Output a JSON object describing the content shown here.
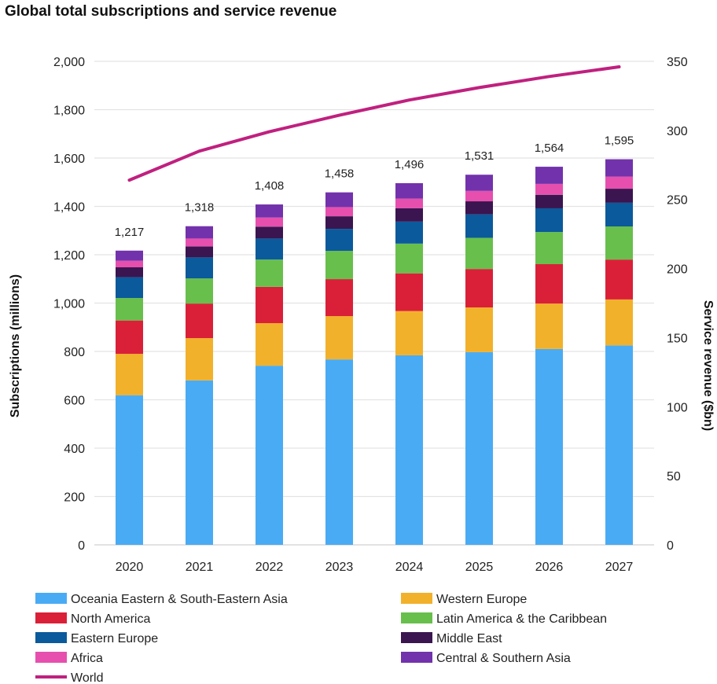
{
  "chart_data": {
    "type": "bar",
    "stacked": true,
    "title": "Global total subscriptions and service revenue",
    "categories": [
      "2020",
      "2021",
      "2022",
      "2023",
      "2024",
      "2025",
      "2026",
      "2027"
    ],
    "ylabel": "Subscriptions (millions)",
    "y2label": "Service revenue ($bn)",
    "ylim": [
      0,
      2000
    ],
    "y2lim": [
      0,
      350
    ],
    "yticks": [
      0,
      200,
      400,
      600,
      800,
      1000,
      1200,
      1400,
      1600,
      1800,
      2000
    ],
    "ytick_labels": [
      "0",
      "200",
      "400",
      "600",
      "800",
      "1,000",
      "1,200",
      "1,400",
      "1,600",
      "1,800",
      "2,000"
    ],
    "y2ticks": [
      0,
      50,
      100,
      150,
      200,
      250,
      300,
      350
    ],
    "y2tick_labels": [
      "0",
      "50",
      "100",
      "150",
      "200",
      "250",
      "300",
      "350"
    ],
    "grid": true,
    "legend_position": "bottom",
    "totals": [
      "1,217",
      "1,318",
      "1,408",
      "1,458",
      "1,496",
      "1,531",
      "1,564",
      "1,595"
    ],
    "series": [
      {
        "name": "Oceania Eastern & South-Eastern Asia",
        "color": "#4AABF5",
        "values": [
          619,
          680,
          741,
          767,
          784,
          797,
          810,
          825
        ]
      },
      {
        "name": "Western Europe",
        "color": "#F2B12A",
        "values": [
          171,
          175,
          176,
          179,
          183,
          185,
          188,
          190
        ]
      },
      {
        "name": "North America",
        "color": "#DA2038",
        "values": [
          138,
          143,
          150,
          153,
          156,
          159,
          163,
          165
        ]
      },
      {
        "name": "Latin America & the Caribbean",
        "color": "#68BF4C",
        "values": [
          93,
          104,
          113,
          117,
          123,
          129,
          133,
          137
        ]
      },
      {
        "name": "Eastern Europe",
        "color": "#0B5A9C",
        "values": [
          86,
          87,
          87,
          91,
          91,
          97,
          98,
          98
        ]
      },
      {
        "name": "Middle East",
        "color": "#3A1550",
        "values": [
          41,
          45,
          49,
          52,
          55,
          54,
          56,
          58
        ]
      },
      {
        "name": "Africa",
        "color": "#E64FAE",
        "values": [
          27,
          33,
          38,
          38,
          40,
          43,
          45,
          50
        ]
      },
      {
        "name": "Central & Southern Asia",
        "color": "#7232AC",
        "values": [
          42,
          51,
          54,
          61,
          64,
          67,
          71,
          72
        ]
      }
    ],
    "line_series": {
      "name": "World",
      "color": "#C0207F",
      "axis": "right",
      "values": [
        264,
        285,
        299,
        311,
        322,
        331,
        339,
        346
      ]
    },
    "legend_order": [
      "Oceania Eastern & South-Eastern Asia",
      "Western Europe",
      "North America",
      "Latin America & the Caribbean",
      "Eastern Europe",
      "Middle East",
      "Africa",
      "Central & Southern Asia",
      "World"
    ]
  }
}
